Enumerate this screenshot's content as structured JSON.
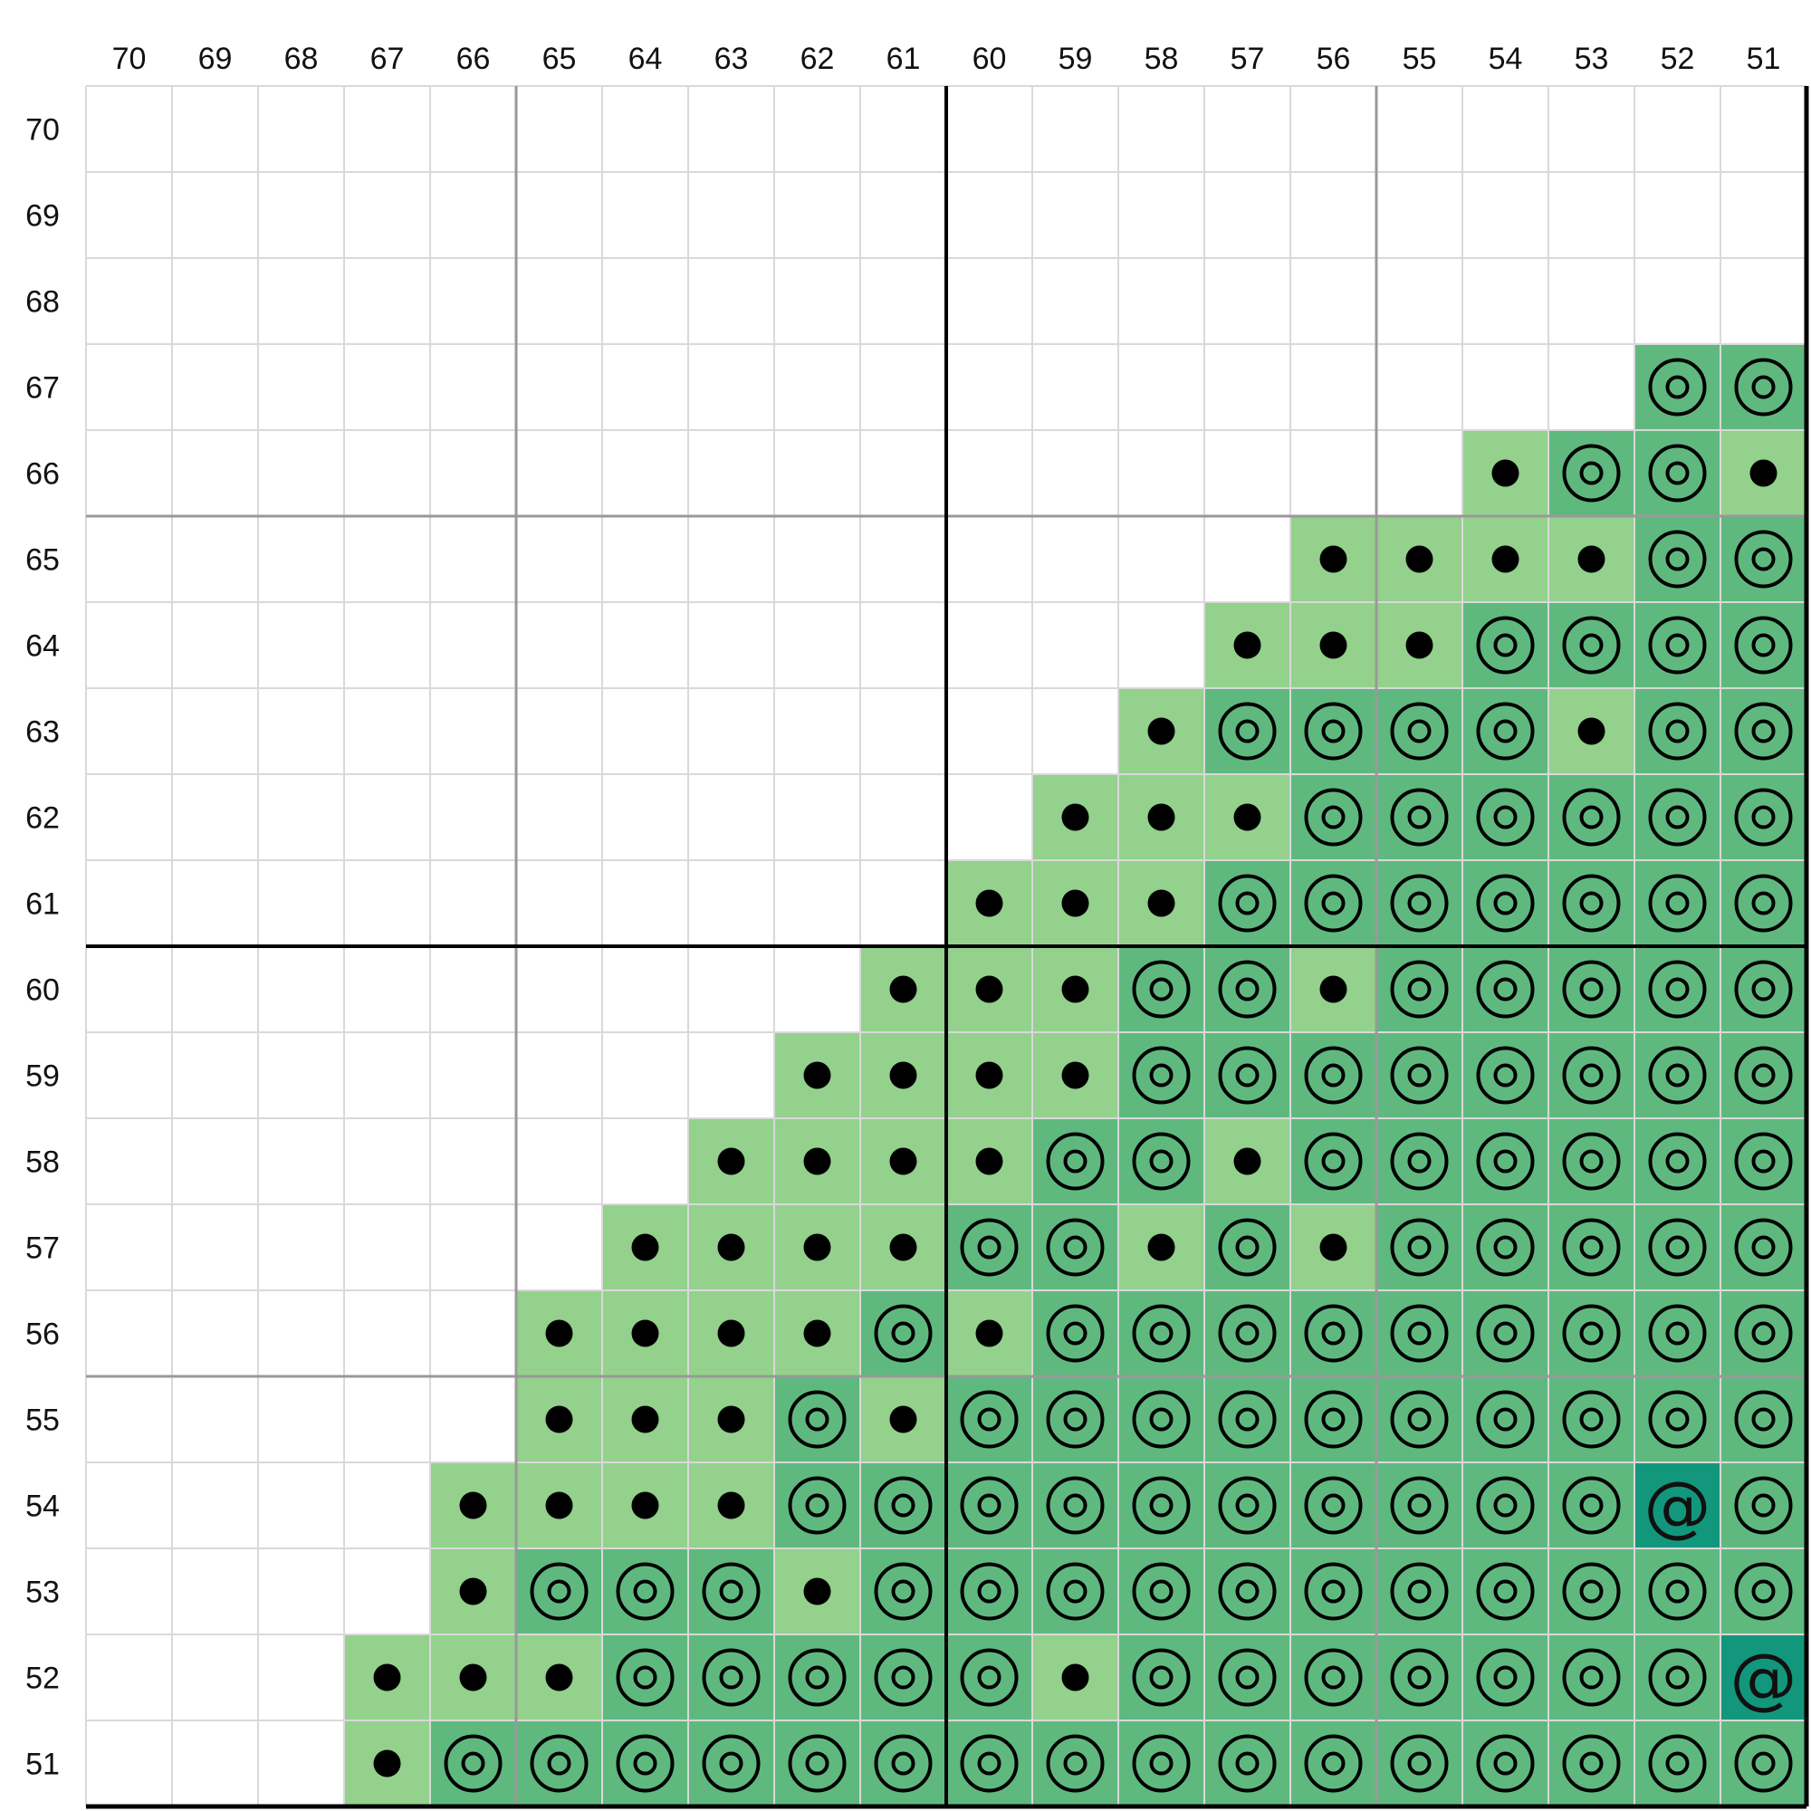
{
  "chart_data": {
    "type": "heatmap",
    "title": "",
    "xlabel": "",
    "ylabel": "",
    "columns": [
      "70",
      "69",
      "68",
      "67",
      "66",
      "65",
      "64",
      "63",
      "62",
      "61",
      "60",
      "59",
      "58",
      "57",
      "56",
      "55",
      "54",
      "53",
      "52",
      "51"
    ],
    "rows": [
      "70",
      "69",
      "68",
      "67",
      "66",
      "65",
      "64",
      "63",
      "62",
      "61",
      "60",
      "59",
      "58",
      "57",
      "56",
      "55",
      "54",
      "53",
      "52",
      "51"
    ],
    "legend_codes": {
      "D": "dot marker on light green cell",
      "R": "concentric ring marker on medium green cell",
      "A": "@ marker on teal cell",
      "": "empty cell"
    },
    "colors": {
      "D": "#93d18c",
      "R": "#5fb97f",
      "A": "#13977c",
      "empty": "#ffffff",
      "cell_grid": "#d9d9d9",
      "block_grid": "#999999",
      "axis_line": "#000000"
    },
    "cells": [
      [
        "",
        "",
        "",
        "",
        "",
        "",
        "",
        "",
        "",
        "",
        "",
        "",
        "",
        "",
        "",
        "",
        "",
        "",
        "",
        ""
      ],
      [
        "",
        "",
        "",
        "",
        "",
        "",
        "",
        "",
        "",
        "",
        "",
        "",
        "",
        "",
        "",
        "",
        "",
        "",
        "",
        ""
      ],
      [
        "",
        "",
        "",
        "",
        "",
        "",
        "",
        "",
        "",
        "",
        "",
        "",
        "",
        "",
        "",
        "",
        "",
        "",
        "",
        ""
      ],
      [
        "",
        "",
        "",
        "",
        "",
        "",
        "",
        "",
        "",
        "",
        "",
        "",
        "",
        "",
        "",
        "",
        "",
        "",
        "R",
        "R"
      ],
      [
        "",
        "",
        "",
        "",
        "",
        "",
        "",
        "",
        "",
        "",
        "",
        "",
        "",
        "",
        "",
        "",
        "D",
        "R",
        "R",
        "D"
      ],
      [
        "",
        "",
        "",
        "",
        "",
        "",
        "",
        "",
        "",
        "",
        "",
        "",
        "",
        "",
        "D",
        "D",
        "D",
        "D",
        "R",
        "R"
      ],
      [
        "",
        "",
        "",
        "",
        "",
        "",
        "",
        "",
        "",
        "",
        "",
        "",
        "",
        "D",
        "D",
        "D",
        "R",
        "R",
        "R",
        "R"
      ],
      [
        "",
        "",
        "",
        "",
        "",
        "",
        "",
        "",
        "",
        "",
        "",
        "",
        "D",
        "R",
        "R",
        "R",
        "R",
        "D",
        "R",
        "R"
      ],
      [
        "",
        "",
        "",
        "",
        "",
        "",
        "",
        "",
        "",
        "",
        "",
        "D",
        "D",
        "D",
        "R",
        "R",
        "R",
        "R",
        "R",
        "R"
      ],
      [
        "",
        "",
        "",
        "",
        "",
        "",
        "",
        "",
        "",
        "",
        "D",
        "D",
        "D",
        "R",
        "R",
        "R",
        "R",
        "R",
        "R",
        "R"
      ],
      [
        "",
        "",
        "",
        "",
        "",
        "",
        "",
        "",
        "",
        "D",
        "D",
        "D",
        "R",
        "R",
        "D",
        "R",
        "R",
        "R",
        "R",
        "R"
      ],
      [
        "",
        "",
        "",
        "",
        "",
        "",
        "",
        "",
        "D",
        "D",
        "D",
        "D",
        "R",
        "R",
        "R",
        "R",
        "R",
        "R",
        "R",
        "R"
      ],
      [
        "",
        "",
        "",
        "",
        "",
        "",
        "",
        "D",
        "D",
        "D",
        "D",
        "R",
        "R",
        "D",
        "R",
        "R",
        "R",
        "R",
        "R",
        "R"
      ],
      [
        "",
        "",
        "",
        "",
        "",
        "",
        "D",
        "D",
        "D",
        "D",
        "R",
        "R",
        "D",
        "R",
        "D",
        "R",
        "R",
        "R",
        "R",
        "R"
      ],
      [
        "",
        "",
        "",
        "",
        "",
        "D",
        "D",
        "D",
        "D",
        "R",
        "D",
        "R",
        "R",
        "R",
        "R",
        "R",
        "R",
        "R",
        "R",
        "R"
      ],
      [
        "",
        "",
        "",
        "",
        "",
        "D",
        "D",
        "D",
        "R",
        "D",
        "R",
        "R",
        "R",
        "R",
        "R",
        "R",
        "R",
        "R",
        "R",
        "R"
      ],
      [
        "",
        "",
        "",
        "",
        "D",
        "D",
        "D",
        "D",
        "R",
        "R",
        "R",
        "R",
        "R",
        "R",
        "R",
        "R",
        "R",
        "R",
        "A",
        "R"
      ],
      [
        "",
        "",
        "",
        "",
        "D",
        "R",
        "R",
        "R",
        "D",
        "R",
        "R",
        "R",
        "R",
        "R",
        "R",
        "R",
        "R",
        "R",
        "R",
        "R"
      ],
      [
        "",
        "",
        "",
        "D",
        "D",
        "D",
        "R",
        "R",
        "R",
        "R",
        "R",
        "D",
        "R",
        "R",
        "R",
        "R",
        "R",
        "R",
        "R",
        "A"
      ],
      [
        "",
        "",
        "",
        "D",
        "R",
        "R",
        "R",
        "R",
        "R",
        "R",
        "R",
        "R",
        "R",
        "R",
        "R",
        "R",
        "R",
        "R",
        "R",
        "R"
      ]
    ]
  }
}
